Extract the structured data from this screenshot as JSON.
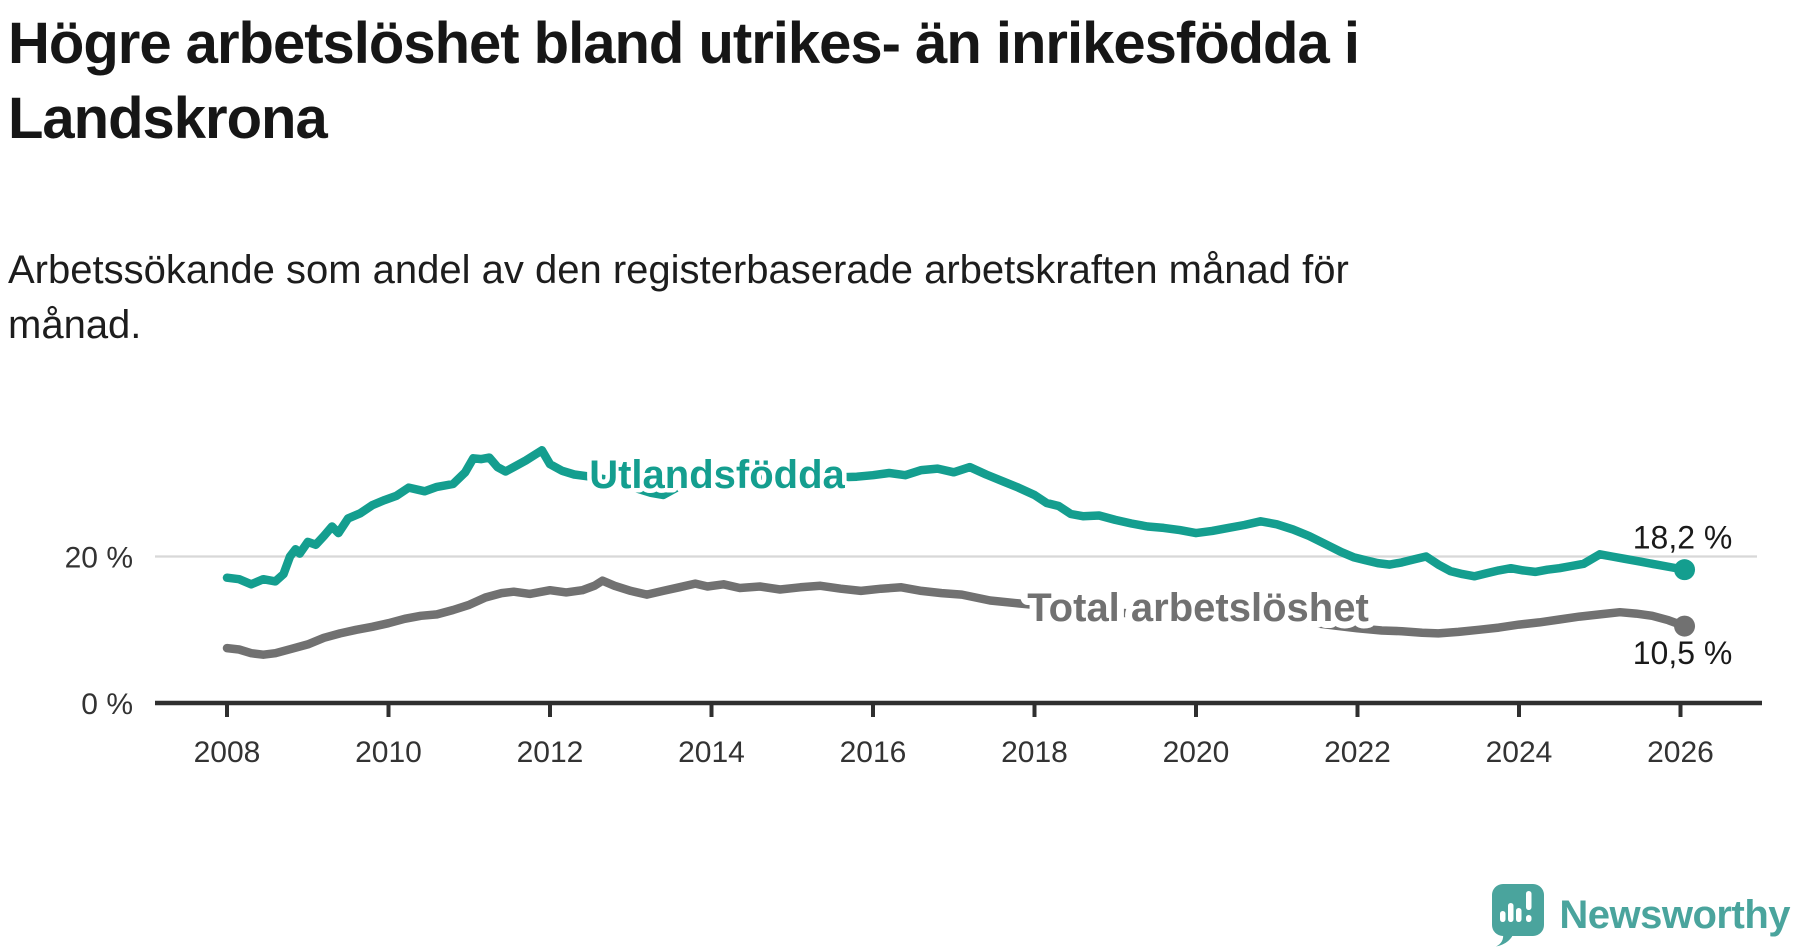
{
  "header": {
    "title": "Högre arbetslöshet bland utrikes- än inrikesfödda i\nLandskrona",
    "subtitle": "Arbetssökande som andel av den registerbaserade arbetskraften månad för\nmånad."
  },
  "footer": {
    "brand": "Newsworthy"
  },
  "colors": {
    "accent_teal": "#149e8f",
    "series_gray": "#717171",
    "axis": "#2f2f2f",
    "gridline": "#d8d8d8",
    "tick_label": "#333333",
    "value_label": "#1a1a1a",
    "brand_teal": "#4aa49d",
    "background": "#ffffff"
  },
  "chart_data": {
    "type": "line",
    "title": "Högre arbetslöshet bland utrikes- än inrikesfödda i Landskrona",
    "subtitle": "Arbetssökande som andel av den registerbaserade arbetskraften månad för månad.",
    "xlabel": "",
    "ylabel": "",
    "x_unit": "year",
    "y_unit": "%",
    "xlim": [
      2007.1,
      2027.1
    ],
    "ylim": [
      0,
      40
    ],
    "x_ticks": [
      2008,
      2010,
      2012,
      2014,
      2016,
      2018,
      2020,
      2022,
      2024,
      2026
    ],
    "y_ticks": [
      {
        "value": 20,
        "label": "20 %",
        "gridline": true
      },
      {
        "value": 0,
        "label": "0 %",
        "gridline": false
      }
    ],
    "legend_position": "inline-labels-on-lines",
    "grid": "single horizontal gridline at 20 %",
    "series": [
      {
        "name": "Utlandsfödda",
        "color": "#149e8f",
        "end_label": "18,2 %",
        "end_value": 18.2,
        "points": [
          [
            2008.0,
            17.1
          ],
          [
            2008.15,
            16.9
          ],
          [
            2008.3,
            16.2
          ],
          [
            2008.45,
            16.9
          ],
          [
            2008.6,
            16.6
          ],
          [
            2008.7,
            17.6
          ],
          [
            2008.78,
            20.0
          ],
          [
            2008.85,
            21.0
          ],
          [
            2008.9,
            20.4
          ],
          [
            2009.0,
            22.0
          ],
          [
            2009.1,
            21.6
          ],
          [
            2009.2,
            22.8
          ],
          [
            2009.3,
            24.1
          ],
          [
            2009.38,
            23.2
          ],
          [
            2009.5,
            25.2
          ],
          [
            2009.65,
            25.9
          ],
          [
            2009.8,
            27.0
          ],
          [
            2009.95,
            27.7
          ],
          [
            2010.1,
            28.3
          ],
          [
            2010.25,
            29.4
          ],
          [
            2010.45,
            28.9
          ],
          [
            2010.6,
            29.5
          ],
          [
            2010.8,
            29.9
          ],
          [
            2010.95,
            31.5
          ],
          [
            2011.05,
            33.4
          ],
          [
            2011.15,
            33.3
          ],
          [
            2011.25,
            33.5
          ],
          [
            2011.35,
            32.2
          ],
          [
            2011.45,
            31.6
          ],
          [
            2011.55,
            32.2
          ],
          [
            2011.7,
            33.1
          ],
          [
            2011.9,
            34.5
          ],
          [
            2012.0,
            32.6
          ],
          [
            2012.15,
            31.7
          ],
          [
            2012.3,
            31.2
          ],
          [
            2012.5,
            30.9
          ],
          [
            2012.7,
            30.5
          ],
          [
            2012.9,
            29.9
          ],
          [
            2013.1,
            29.2
          ],
          [
            2013.25,
            28.7
          ],
          [
            2013.4,
            28.4
          ],
          [
            2013.55,
            29.3
          ],
          [
            2013.7,
            30.1
          ],
          [
            2013.9,
            30.7
          ],
          [
            2014.1,
            31.1
          ],
          [
            2014.3,
            30.7
          ],
          [
            2014.55,
            30.9
          ],
          [
            2014.8,
            31.0
          ],
          [
            2015.05,
            30.8
          ],
          [
            2015.3,
            31.0
          ],
          [
            2015.55,
            30.8
          ],
          [
            2015.8,
            30.9
          ],
          [
            2016.0,
            31.1
          ],
          [
            2016.2,
            31.4
          ],
          [
            2016.4,
            31.1
          ],
          [
            2016.6,
            31.8
          ],
          [
            2016.8,
            32.0
          ],
          [
            2017.0,
            31.5
          ],
          [
            2017.2,
            32.2
          ],
          [
            2017.4,
            31.2
          ],
          [
            2017.6,
            30.3
          ],
          [
            2017.8,
            29.4
          ],
          [
            2018.0,
            28.4
          ],
          [
            2018.15,
            27.3
          ],
          [
            2018.3,
            26.9
          ],
          [
            2018.45,
            25.8
          ],
          [
            2018.6,
            25.5
          ],
          [
            2018.8,
            25.6
          ],
          [
            2019.0,
            25.0
          ],
          [
            2019.2,
            24.5
          ],
          [
            2019.4,
            24.1
          ],
          [
            2019.6,
            23.9
          ],
          [
            2019.8,
            23.6
          ],
          [
            2020.0,
            23.2
          ],
          [
            2020.2,
            23.5
          ],
          [
            2020.4,
            23.9
          ],
          [
            2020.6,
            24.3
          ],
          [
            2020.8,
            24.8
          ],
          [
            2021.0,
            24.4
          ],
          [
            2021.2,
            23.7
          ],
          [
            2021.4,
            22.8
          ],
          [
            2021.6,
            21.7
          ],
          [
            2021.8,
            20.6
          ],
          [
            2021.95,
            19.9
          ],
          [
            2022.1,
            19.5
          ],
          [
            2022.25,
            19.1
          ],
          [
            2022.4,
            18.9
          ],
          [
            2022.55,
            19.2
          ],
          [
            2022.7,
            19.6
          ],
          [
            2022.85,
            20.0
          ],
          [
            2023.0,
            18.9
          ],
          [
            2023.15,
            18.0
          ],
          [
            2023.3,
            17.6
          ],
          [
            2023.45,
            17.3
          ],
          [
            2023.6,
            17.7
          ],
          [
            2023.75,
            18.1
          ],
          [
            2023.9,
            18.4
          ],
          [
            2024.05,
            18.1
          ],
          [
            2024.2,
            17.9
          ],
          [
            2024.35,
            18.2
          ],
          [
            2024.5,
            18.4
          ],
          [
            2024.65,
            18.7
          ],
          [
            2024.8,
            19.0
          ],
          [
            2025.0,
            20.3
          ],
          [
            2025.15,
            20.0
          ],
          [
            2025.3,
            19.7
          ],
          [
            2025.5,
            19.3
          ],
          [
            2025.7,
            18.9
          ],
          [
            2025.9,
            18.5
          ],
          [
            2026.05,
            18.2
          ]
        ]
      },
      {
        "name": "Total arbetslöshet",
        "color": "#717171",
        "end_label": "10,5 %",
        "end_value": 10.5,
        "points": [
          [
            2008.0,
            7.5
          ],
          [
            2008.15,
            7.3
          ],
          [
            2008.3,
            6.8
          ],
          [
            2008.45,
            6.6
          ],
          [
            2008.6,
            6.8
          ],
          [
            2008.8,
            7.4
          ],
          [
            2009.0,
            8.0
          ],
          [
            2009.2,
            8.9
          ],
          [
            2009.4,
            9.5
          ],
          [
            2009.6,
            10.0
          ],
          [
            2009.8,
            10.4
          ],
          [
            2010.0,
            10.9
          ],
          [
            2010.2,
            11.5
          ],
          [
            2010.4,
            11.9
          ],
          [
            2010.6,
            12.1
          ],
          [
            2010.8,
            12.7
          ],
          [
            2011.0,
            13.4
          ],
          [
            2011.2,
            14.4
          ],
          [
            2011.4,
            15.0
          ],
          [
            2011.55,
            15.2
          ],
          [
            2011.75,
            14.9
          ],
          [
            2012.0,
            15.4
          ],
          [
            2012.2,
            15.1
          ],
          [
            2012.4,
            15.4
          ],
          [
            2012.55,
            16.0
          ],
          [
            2012.65,
            16.7
          ],
          [
            2012.8,
            16.0
          ],
          [
            2013.0,
            15.3
          ],
          [
            2013.2,
            14.8
          ],
          [
            2013.4,
            15.3
          ],
          [
            2013.6,
            15.8
          ],
          [
            2013.8,
            16.3
          ],
          [
            2013.95,
            15.9
          ],
          [
            2014.15,
            16.2
          ],
          [
            2014.35,
            15.7
          ],
          [
            2014.6,
            15.9
          ],
          [
            2014.85,
            15.5
          ],
          [
            2015.1,
            15.8
          ],
          [
            2015.35,
            16.0
          ],
          [
            2015.6,
            15.6
          ],
          [
            2015.85,
            15.3
          ],
          [
            2016.1,
            15.6
          ],
          [
            2016.35,
            15.8
          ],
          [
            2016.6,
            15.3
          ],
          [
            2016.85,
            15.0
          ],
          [
            2017.1,
            14.8
          ],
          [
            2017.45,
            14.0
          ],
          [
            2017.8,
            13.6
          ],
          [
            2018.1,
            13.3
          ],
          [
            2018.4,
            13.0
          ],
          [
            2018.7,
            12.7
          ],
          [
            2019.0,
            12.4
          ],
          [
            2019.3,
            12.1
          ],
          [
            2019.6,
            11.9
          ],
          [
            2019.9,
            11.8
          ],
          [
            2020.2,
            12.0
          ],
          [
            2020.5,
            12.1
          ],
          [
            2020.8,
            11.8
          ],
          [
            2021.1,
            11.4
          ],
          [
            2021.4,
            11.0
          ],
          [
            2021.7,
            10.6
          ],
          [
            2022.0,
            10.2
          ],
          [
            2022.3,
            9.9
          ],
          [
            2022.55,
            9.8
          ],
          [
            2022.8,
            9.6
          ],
          [
            2023.0,
            9.5
          ],
          [
            2023.25,
            9.7
          ],
          [
            2023.5,
            10.0
          ],
          [
            2023.75,
            10.3
          ],
          [
            2024.0,
            10.7
          ],
          [
            2024.25,
            11.0
          ],
          [
            2024.5,
            11.4
          ],
          [
            2024.75,
            11.8
          ],
          [
            2025.0,
            12.1
          ],
          [
            2025.25,
            12.4
          ],
          [
            2025.45,
            12.2
          ],
          [
            2025.65,
            11.9
          ],
          [
            2025.85,
            11.3
          ],
          [
            2026.05,
            10.5
          ]
        ]
      }
    ]
  }
}
